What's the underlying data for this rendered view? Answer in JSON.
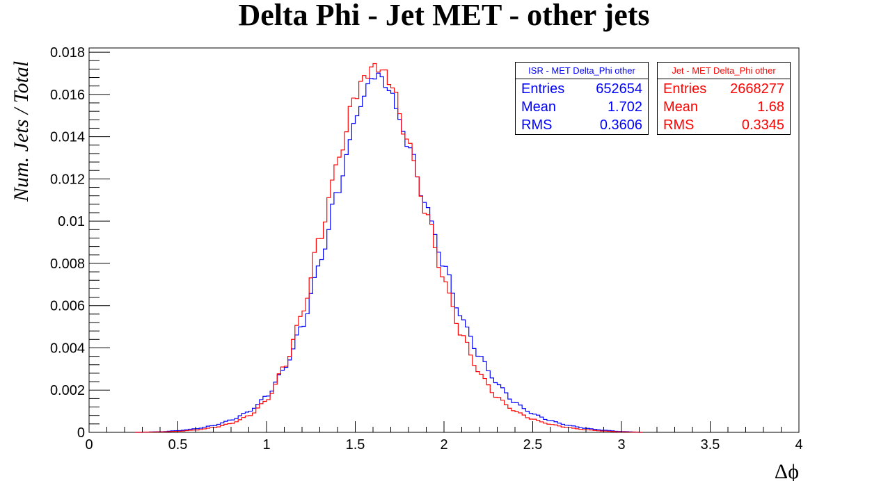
{
  "title": "Delta Phi - Jet MET - other jets",
  "chart_data": {
    "type": "line",
    "title": "Delta Phi - Jet MET - other jets",
    "xlabel": "Δϕ",
    "ylabel": "Num. Jets / Total",
    "xlim": [
      0,
      4
    ],
    "ylim": [
      0,
      0.0182
    ],
    "x_ticks": [
      "0",
      "0.5",
      "1",
      "1.5",
      "2",
      "2.5",
      "3",
      "3.5",
      "4"
    ],
    "y_ticks": [
      "0",
      "0.002",
      "0.004",
      "0.006",
      "0.008",
      "0.01",
      "0.012",
      "0.014",
      "0.016",
      "0.018"
    ],
    "grid": false,
    "legend_position": "top-right",
    "series": [
      {
        "name": "ISR - MET Delta_Phi other",
        "color": "#0000ff",
        "entries": "652654",
        "mean": "1.702",
        "rms": "0.3606",
        "x": [
          0.3,
          0.4,
          0.5,
          0.6,
          0.7,
          0.8,
          0.9,
          1.0,
          1.1,
          1.2,
          1.3,
          1.4,
          1.5,
          1.55,
          1.6,
          1.65,
          1.7,
          1.8,
          1.9,
          2.0,
          2.1,
          2.2,
          2.3,
          2.4,
          2.5,
          2.6,
          2.7,
          2.8,
          2.9,
          3.0,
          3.1
        ],
        "values": [
          1e-05,
          3e-05,
          8e-05,
          0.00017,
          0.00032,
          0.00058,
          0.00098,
          0.0017,
          0.003,
          0.005,
          0.008,
          0.0114,
          0.0147,
          0.016,
          0.0169,
          0.0168,
          0.016,
          0.0136,
          0.0107,
          0.0079,
          0.0054,
          0.0036,
          0.0023,
          0.0014,
          0.00088,
          0.00055,
          0.00033,
          0.00019,
          0.0001,
          4e-05,
          1e-05
        ]
      },
      {
        "name": "Jet - MET Delta_Phi other",
        "color": "#ff0000",
        "entries": "2668277",
        "mean": "1.68",
        "rms": "0.3345",
        "x": [
          0.3,
          0.4,
          0.5,
          0.6,
          0.7,
          0.8,
          0.9,
          1.0,
          1.1,
          1.2,
          1.3,
          1.4,
          1.5,
          1.55,
          1.6,
          1.65,
          1.7,
          1.8,
          1.9,
          2.0,
          2.1,
          2.2,
          2.3,
          2.4,
          2.5,
          2.6,
          2.7,
          2.8,
          2.9,
          3.0,
          3.1
        ],
        "values": [
          1e-05,
          2e-05,
          5e-05,
          0.00011,
          0.00022,
          0.00042,
          0.00078,
          0.0015,
          0.0031,
          0.0056,
          0.0092,
          0.0128,
          0.0159,
          0.0168,
          0.0173,
          0.0172,
          0.0165,
          0.0137,
          0.0104,
          0.0072,
          0.0046,
          0.0028,
          0.00165,
          0.001,
          0.00062,
          0.00038,
          0.00022,
          0.00012,
          6e-05,
          2e-05,
          1e-05
        ]
      }
    ]
  },
  "stats_labels": {
    "entries": "Entries",
    "mean": "Mean",
    "rms": "RMS"
  }
}
